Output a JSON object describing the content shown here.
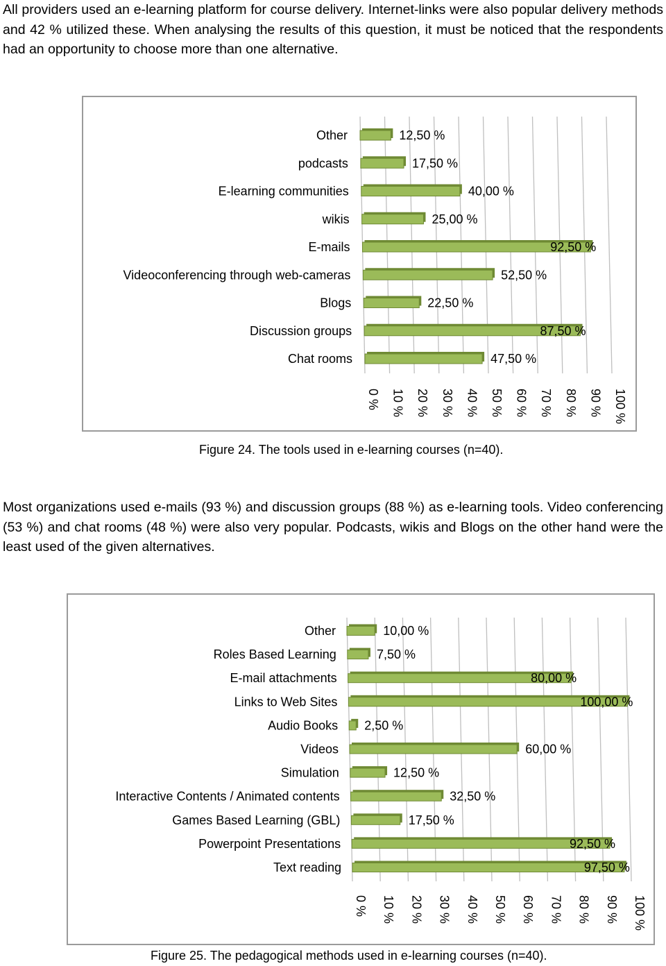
{
  "paragraph_1": "All providers used an e-learning platform for course delivery. Internet-links were also popular delivery methods and 42 % utilized these. When analysing the results of this question, it must be noticed that the respondents had an opportunity to choose more than one alternative.",
  "paragraph_2": "Most organizations used e-mails (93 %) and discussion groups (88 %) as e-learning tools. Video conferencing (53 %) and chat rooms (48 %) were also very popular. Podcasts, wikis and Blogs on the other hand were the least used of the given alternatives.",
  "colors": {
    "bar_fill": "#9bbb59",
    "bar_dark": "#6f8a34",
    "grid": "#bfbfbf",
    "box_border": "#9a9a9a"
  },
  "chart_data": [
    {
      "type": "bar",
      "orientation": "horizontal",
      "caption": "Figure 24. The tools used in e-learning courses (n=40).",
      "categories": [
        "Other",
        "podcasts",
        "E-learning communities",
        "wikis",
        "E-mails",
        "Videoconferencing through web-cameras",
        "Blogs",
        "Discussion groups",
        "Chat rooms"
      ],
      "values": [
        12.5,
        17.5,
        40.0,
        25.0,
        92.5,
        52.5,
        22.5,
        87.5,
        47.5
      ],
      "data_labels": [
        "12,50 %",
        "17,50 %",
        "40,00 %",
        "25,00 %",
        "92,50 %",
        "52,50 %",
        "22,50 %",
        "87,50 %",
        "47,50 %"
      ],
      "x_ticks": [
        "0 %",
        "10 %",
        "20 %",
        "30 %",
        "40 %",
        "50 %",
        "60 %",
        "70 %",
        "80 %",
        "90 %",
        "100 %"
      ],
      "xlim": [
        0,
        100
      ],
      "grid": true,
      "legend": "none"
    },
    {
      "type": "bar",
      "orientation": "horizontal",
      "caption": "Figure 25. The pedagogical methods used in e-learning courses (n=40).",
      "categories": [
        "Other",
        "Roles Based Learning",
        "E-mail attachments",
        "Links to Web Sites",
        "Audio Books",
        "Videos",
        "Simulation",
        "Interactive Contents / Animated contents",
        "Games Based Learning (GBL)",
        "Powerpoint Presentations",
        "Text reading"
      ],
      "values": [
        10.0,
        7.5,
        80.0,
        100.0,
        2.5,
        60.0,
        12.5,
        32.5,
        17.5,
        92.5,
        97.5
      ],
      "data_labels": [
        "10,00 %",
        "7,50 %",
        "80,00 %",
        "100,00 %",
        "2,50 %",
        "60,00 %",
        "12,50 %",
        "32,50 %",
        "17,50 %",
        "92,50 %",
        "97,50 %"
      ],
      "x_ticks": [
        "0 %",
        "10 %",
        "20 %",
        "30 %",
        "40 %",
        "50 %",
        "60 %",
        "70 %",
        "80 %",
        "90 %",
        "100 %"
      ],
      "xlim": [
        0,
        100
      ],
      "grid": true,
      "legend": "none"
    }
  ]
}
